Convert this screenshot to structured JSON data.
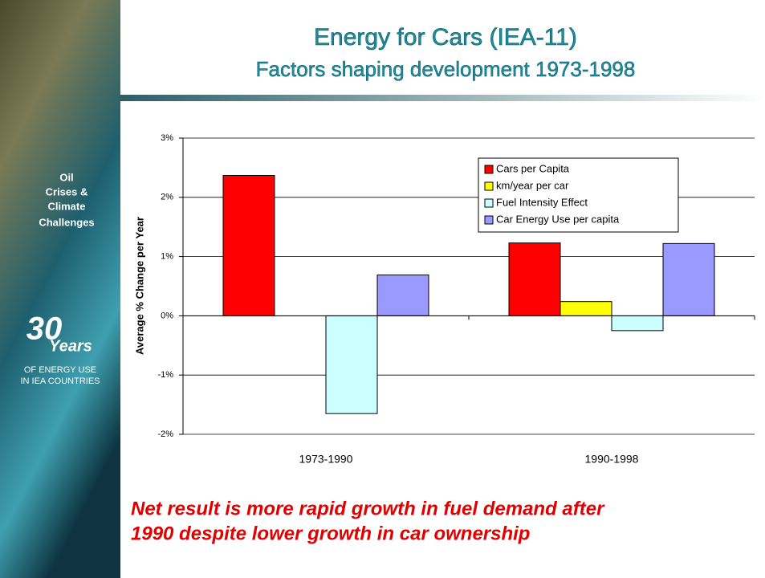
{
  "header": {
    "title": "Energy for Cars (IEA-11)",
    "subtitle": "Factors shaping development 1973-1998"
  },
  "sidebar": {
    "theme": [
      "Oil",
      "Crises &",
      "Climate",
      "Challenges"
    ],
    "years_number": "30",
    "years_word": "Years",
    "caption": [
      "OF ENERGY USE",
      "IN IEA COUNTRIES"
    ]
  },
  "chart_data": {
    "type": "bar",
    "ylabel": "Average % Change per Year",
    "categories": [
      "1973-1990",
      "1990-1998"
    ],
    "series": [
      {
        "name": "Cars per Capita",
        "color": "#ff0000",
        "values": [
          2.37,
          1.23
        ]
      },
      {
        "name": "km/year per car",
        "color": "#ffff00",
        "values": [
          0,
          0.24
        ]
      },
      {
        "name": "Fuel Intensity Effect",
        "color": "#ccffff",
        "values": [
          -1.65,
          -0.25
        ]
      },
      {
        "name": "Car Energy Use per capita",
        "color": "#9999ff",
        "values": [
          0.69,
          1.22
        ]
      }
    ],
    "ylim": [
      -2,
      3
    ],
    "yticks": [
      {
        "value": -2,
        "label": "-2%"
      },
      {
        "value": -1,
        "label": "-1%"
      },
      {
        "value": 0,
        "label": "0%"
      },
      {
        "value": 1,
        "label": "1%"
      },
      {
        "value": 2,
        "label": "2%"
      },
      {
        "value": 3,
        "label": "3%"
      }
    ],
    "grid": true,
    "legend": "upper right"
  },
  "footer": {
    "note": [
      "Net result is more rapid growth in fuel demand after",
      "1990 despite lower growth in car ownership"
    ]
  }
}
